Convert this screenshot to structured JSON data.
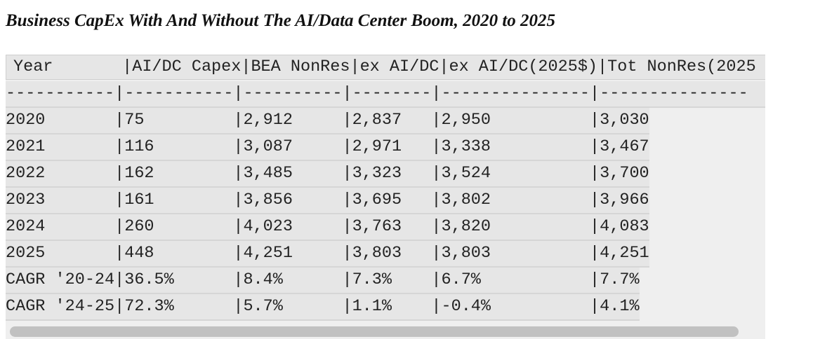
{
  "title": "Business CapEx With And Without The AI/Data Center Boom, 2020 to 2025",
  "table": {
    "header": "Year       |AI/DC Capex|BEA NonRes|ex AI/DC|ex AI/DC(2025$)|Tot NonRes(2025",
    "separator": "-----------|-----------|----------|--------|---------------|---------------",
    "rows": [
      "2020       |75         |2,912     |2,837   |2,950          |3,030",
      "2021       |116        |3,087     |2,971   |3,338          |3,467",
      "2022       |162        |3,485     |3,323   |3,524          |3,700",
      "2023       |161        |3,856     |3,695   |3,802          |3,966",
      "2024       |260        |4,023     |3,763   |3,820          |4,083",
      "2025       |448        |4,251     |3,803   |3,803          |4,251",
      "CAGR '20-24|36.5%      |8.4%      |7.3%    |6.7%           |7.7%",
      "CAGR '24-25|72.3%      |5.7%      |1.1%    |-0.4%          |4.1%"
    ]
  }
}
